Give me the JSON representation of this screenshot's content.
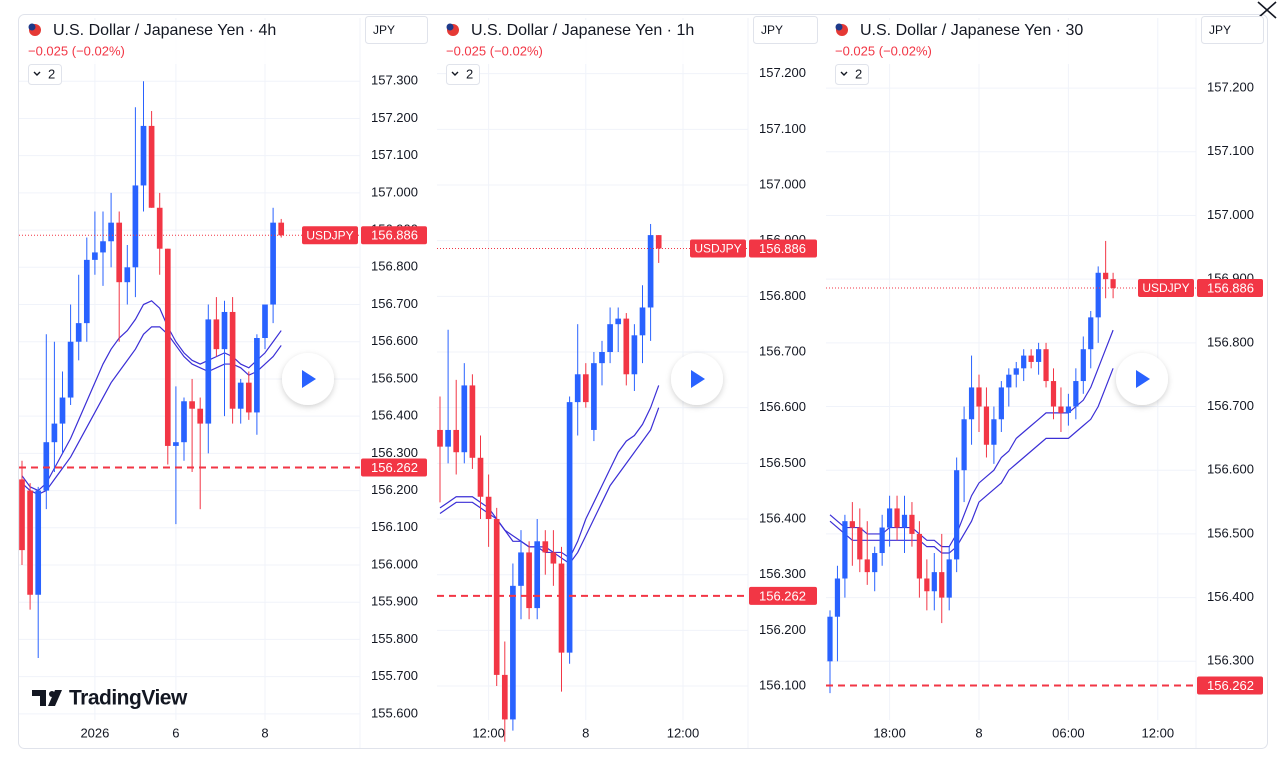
{
  "chart_data": [
    {
      "type": "candlestick",
      "title": "U.S. Dollar / Japanese Yen · 4h",
      "change": "−0.025 (−0.02%)",
      "indicators": "2",
      "currency": "JPY",
      "watermark": "TradingView",
      "categories": [
        null,
        null,
        null,
        null,
        null,
        null,
        null,
        null,
        null,
        "2026",
        null,
        null,
        null,
        null,
        null,
        null,
        null,
        null,
        null,
        "6",
        null,
        null,
        null,
        null,
        null,
        null,
        null,
        null,
        null,
        null,
        "8",
        null,
        null
      ],
      "open": [
        156.23,
        156.2,
        155.92,
        156.2,
        156.33,
        156.38,
        156.45,
        156.6,
        156.65,
        156.82,
        156.84,
        156.87,
        156.92,
        156.76,
        156.8,
        157.02,
        157.18,
        156.96,
        156.85,
        156.32,
        156.33,
        156.44,
        156.42,
        156.38,
        156.66,
        156.58,
        156.68,
        156.42,
        156.49,
        156.41,
        156.61,
        156.7,
        156.92
      ],
      "high": [
        156.28,
        156.22,
        156.21,
        156.62,
        156.6,
        156.52,
        156.7,
        156.78,
        156.88,
        156.95,
        156.95,
        157.0,
        156.95,
        156.86,
        157.23,
        157.3,
        157.22,
        157.0,
        156.85,
        156.48,
        156.45,
        156.5,
        156.45,
        156.7,
        156.72,
        156.71,
        156.72,
        156.5,
        156.52,
        156.62,
        156.7,
        156.96,
        156.93
      ],
      "low": [
        156.0,
        155.88,
        155.75,
        156.15,
        156.25,
        156.3,
        156.43,
        156.55,
        156.6,
        156.78,
        156.75,
        156.8,
        156.6,
        156.7,
        156.72,
        156.95,
        156.96,
        156.78,
        156.27,
        156.11,
        156.28,
        156.25,
        156.15,
        156.3,
        156.56,
        156.4,
        156.38,
        156.38,
        156.39,
        156.35,
        156.58,
        156.65,
        156.88
      ],
      "close": [
        156.04,
        155.92,
        156.2,
        156.33,
        156.38,
        156.45,
        156.6,
        156.65,
        156.82,
        156.84,
        156.87,
        156.92,
        156.76,
        156.8,
        157.02,
        157.18,
        156.96,
        156.85,
        156.32,
        156.33,
        156.44,
        156.42,
        156.38,
        156.66,
        156.58,
        156.68,
        156.42,
        156.49,
        156.41,
        156.61,
        156.7,
        156.92,
        156.886
      ],
      "up_color": "#2962ff",
      "down_color": "#f23645",
      "series": [
        {
          "color": "#3b2fd6",
          "values": [
            156.24,
            156.21,
            156.2,
            156.22,
            156.26,
            156.3,
            156.34,
            156.39,
            156.44,
            156.49,
            156.54,
            156.58,
            156.61,
            156.63,
            156.66,
            156.7,
            156.71,
            156.69,
            156.64,
            156.6,
            156.57,
            156.55,
            156.54,
            156.55,
            156.56,
            156.57,
            156.56,
            156.54,
            156.53,
            156.55,
            156.57,
            156.6,
            156.63
          ]
        },
        {
          "color": "#3b2fd6",
          "values": [
            156.22,
            156.2,
            156.19,
            156.2,
            156.23,
            156.26,
            156.29,
            156.33,
            156.37,
            156.41,
            156.45,
            156.49,
            156.52,
            156.55,
            156.58,
            156.62,
            156.64,
            156.64,
            156.62,
            156.59,
            156.56,
            156.54,
            156.53,
            156.52,
            156.53,
            156.54,
            156.54,
            156.53,
            156.51,
            156.52,
            156.54,
            156.56,
            156.59
          ]
        }
      ],
      "ylim": [
        155.57,
        157.47
      ],
      "yticks": [
        {
          "value": 155.6,
          "label": "155.600"
        },
        {
          "value": 155.7,
          "label": "155.700"
        },
        {
          "value": 155.8,
          "label": "155.800"
        },
        {
          "value": 155.9,
          "label": "155.900"
        },
        {
          "value": 156.0,
          "label": "156.000"
        },
        {
          "value": 156.1,
          "label": "156.100"
        },
        {
          "value": 156.2,
          "label": "156.200"
        },
        {
          "value": 156.3,
          "label": "156.300"
        },
        {
          "value": 156.4,
          "label": "156.400"
        },
        {
          "value": 156.5,
          "label": "156.500"
        },
        {
          "value": 156.6,
          "label": "156.600"
        },
        {
          "value": 156.7,
          "label": "156.700"
        },
        {
          "value": 156.8,
          "label": "156.800"
        },
        {
          "value": 156.9,
          "label": "156.900"
        },
        {
          "value": 157.0,
          "label": "157.000"
        },
        {
          "value": 157.1,
          "label": "157.100"
        },
        {
          "value": 157.2,
          "label": "157.200"
        },
        {
          "value": 157.3,
          "label": "157.300"
        }
      ],
      "grid": true,
      "price_lines": [
        {
          "name": "USDJPY",
          "value": 156.886,
          "style": "dotted",
          "color": "#f23645"
        },
        {
          "value": 156.262,
          "style": "dashed",
          "color": "#f23645"
        }
      ]
    },
    {
      "type": "candlestick",
      "title": "U.S. Dollar / Japanese Yen · 1h",
      "change": "−0.025 (−0.02%)",
      "indicators": "2",
      "currency": "JPY",
      "categories": [
        null,
        null,
        null,
        null,
        null,
        null,
        "12:00",
        null,
        null,
        null,
        null,
        null,
        null,
        null,
        null,
        null,
        null,
        null,
        "8",
        null,
        null,
        null,
        null,
        null,
        null,
        null,
        null,
        null,
        null,
        null,
        "12:00"
      ],
      "open": [
        156.56,
        156.53,
        156.56,
        156.52,
        156.64,
        156.51,
        156.44,
        156.4,
        156.12,
        156.04,
        156.28,
        156.34,
        156.24,
        156.36,
        156.34,
        156.32,
        156.16,
        156.61,
        156.66,
        156.56,
        156.68,
        156.7,
        156.75,
        156.76,
        156.66,
        156.73,
        156.78,
        156.91,
        null,
        null,
        null
      ],
      "high": [
        156.62,
        156.74,
        156.65,
        156.68,
        156.66,
        156.55,
        156.48,
        156.42,
        156.18,
        156.32,
        156.38,
        156.36,
        156.4,
        156.38,
        156.38,
        156.35,
        156.62,
        156.75,
        156.68,
        156.7,
        156.72,
        156.78,
        156.78,
        156.77,
        156.75,
        156.82,
        156.93,
        156.91,
        null,
        null,
        null
      ],
      "low": [
        156.43,
        156.5,
        156.48,
        156.5,
        156.49,
        156.4,
        156.35,
        156.1,
        156.0,
        156.02,
        156.22,
        156.22,
        156.22,
        156.3,
        156.28,
        156.09,
        156.14,
        156.55,
        156.6,
        156.54,
        156.64,
        156.68,
        156.7,
        156.64,
        156.63,
        156.68,
        156.72,
        156.86,
        null,
        null,
        null
      ],
      "close": [
        156.53,
        156.56,
        156.52,
        156.64,
        156.51,
        156.44,
        156.4,
        156.12,
        156.04,
        156.28,
        156.34,
        156.24,
        156.36,
        156.34,
        156.32,
        156.16,
        156.61,
        156.66,
        156.61,
        156.68,
        156.7,
        156.75,
        156.76,
        156.66,
        156.73,
        156.78,
        156.91,
        156.886,
        null,
        null,
        null
      ],
      "up_color": "#2962ff",
      "down_color": "#f23645",
      "series": [
        {
          "color": "#3b2fd6",
          "values": [
            156.42,
            156.43,
            156.44,
            156.44,
            156.44,
            156.43,
            156.42,
            156.4,
            156.38,
            156.36,
            156.36,
            156.35,
            156.35,
            156.35,
            156.34,
            156.34,
            156.33,
            156.36,
            156.4,
            156.43,
            156.46,
            156.49,
            156.52,
            156.54,
            156.55,
            156.57,
            156.6,
            156.64,
            null,
            null,
            null
          ]
        },
        {
          "color": "#3b2fd6",
          "values": [
            156.41,
            156.42,
            156.43,
            156.43,
            156.43,
            156.42,
            156.41,
            156.4,
            156.38,
            156.37,
            156.36,
            156.35,
            156.35,
            156.34,
            156.34,
            156.33,
            156.32,
            156.34,
            156.37,
            156.4,
            156.43,
            156.46,
            156.48,
            156.5,
            156.52,
            156.54,
            156.56,
            156.6,
            null,
            null,
            null
          ]
        }
      ],
      "ylim": [
        156.03,
        157.3
      ],
      "yticks": [
        {
          "value": 156.1,
          "label": "156.100"
        },
        {
          "value": 156.2,
          "label": "156.200"
        },
        {
          "value": 156.3,
          "label": "156.300"
        },
        {
          "value": 156.4,
          "label": "156.400"
        },
        {
          "value": 156.5,
          "label": "156.500"
        },
        {
          "value": 156.6,
          "label": "156.600"
        },
        {
          "value": 156.7,
          "label": "156.700"
        },
        {
          "value": 156.8,
          "label": "156.800"
        },
        {
          "value": 156.9,
          "label": "156.900"
        },
        {
          "value": 157.0,
          "label": "157.000"
        },
        {
          "value": 157.1,
          "label": "157.100"
        },
        {
          "value": 157.2,
          "label": "157.200"
        }
      ],
      "grid": true,
      "price_lines": [
        {
          "name": "USDJPY",
          "value": 156.886,
          "style": "dotted",
          "color": "#f23645"
        },
        {
          "value": 156.262,
          "style": "dashed",
          "color": "#f23645"
        }
      ]
    },
    {
      "type": "candlestick",
      "title": "U.S. Dollar / Japanese Yen · 30",
      "change": "−0.025 (−0.02%)",
      "indicators": "2",
      "currency": "JPY",
      "categories": [
        null,
        null,
        null,
        null,
        null,
        null,
        null,
        null,
        "18:00",
        null,
        null,
        null,
        null,
        null,
        null,
        null,
        null,
        null,
        null,
        null,
        "8",
        null,
        null,
        null,
        null,
        null,
        null,
        null,
        null,
        null,
        null,
        null,
        "06:00",
        null,
        null,
        null,
        null,
        null,
        null,
        null,
        null,
        null,
        null,
        null,
        "12:00"
      ],
      "open": [
        156.3,
        156.37,
        156.43,
        156.52,
        156.51,
        156.46,
        156.44,
        156.47,
        156.51,
        156.54,
        156.51,
        156.53,
        156.5,
        156.43,
        156.41,
        156.44,
        156.4,
        156.46,
        156.6,
        156.68,
        156.73,
        156.7,
        156.64,
        156.68,
        156.73,
        156.75,
        156.76,
        156.78,
        156.77,
        156.79,
        156.74,
        156.7,
        156.69,
        156.7,
        156.74,
        156.79,
        156.84,
        156.91,
        156.9,
        null,
        null,
        null,
        null,
        null,
        null
      ],
      "high": [
        156.38,
        156.45,
        156.53,
        156.55,
        156.54,
        156.52,
        156.48,
        156.53,
        156.56,
        156.56,
        156.56,
        156.55,
        156.52,
        156.46,
        156.47,
        156.5,
        156.48,
        156.62,
        156.7,
        156.78,
        156.75,
        156.73,
        156.7,
        156.74,
        156.76,
        156.77,
        156.79,
        156.79,
        156.8,
        156.8,
        156.76,
        156.73,
        156.72,
        156.76,
        156.81,
        156.85,
        156.92,
        156.96,
        156.91,
        null,
        null,
        null,
        null,
        null,
        null
      ],
      "low": [
        156.25,
        156.3,
        156.4,
        156.45,
        156.44,
        156.42,
        156.41,
        156.45,
        156.48,
        156.49,
        156.47,
        156.48,
        156.4,
        156.38,
        156.38,
        156.36,
        156.38,
        156.44,
        156.55,
        156.64,
        156.66,
        156.62,
        156.61,
        156.66,
        156.7,
        156.73,
        156.74,
        156.76,
        156.75,
        156.73,
        156.68,
        156.66,
        156.67,
        156.68,
        156.72,
        156.76,
        156.8,
        156.87,
        156.87,
        null,
        null,
        null,
        null,
        null,
        null
      ],
      "close": [
        156.37,
        156.43,
        156.52,
        156.51,
        156.46,
        156.44,
        156.47,
        156.51,
        156.54,
        156.51,
        156.53,
        156.5,
        156.43,
        156.41,
        156.44,
        156.4,
        156.46,
        156.6,
        156.68,
        156.73,
        156.7,
        156.64,
        156.68,
        156.73,
        156.75,
        156.76,
        156.78,
        156.77,
        156.79,
        156.74,
        156.7,
        156.69,
        156.7,
        156.74,
        156.79,
        156.84,
        156.91,
        156.9,
        156.886,
        null,
        null,
        null,
        null,
        null,
        null
      ],
      "up_color": "#2962ff",
      "down_color": "#f23645",
      "series": [
        {
          "color": "#3b2fd6",
          "values": [
            156.53,
            156.52,
            156.51,
            156.51,
            156.51,
            156.5,
            156.5,
            156.5,
            156.51,
            156.51,
            156.51,
            156.51,
            156.5,
            156.49,
            156.49,
            156.48,
            156.48,
            156.5,
            156.53,
            156.56,
            156.58,
            156.59,
            156.6,
            156.62,
            156.63,
            156.65,
            156.66,
            156.67,
            156.68,
            156.69,
            156.69,
            156.69,
            156.69,
            156.7,
            156.71,
            156.73,
            156.76,
            156.79,
            156.82,
            null,
            null,
            null,
            null,
            null,
            null
          ]
        },
        {
          "color": "#3b2fd6",
          "values": [
            156.52,
            156.51,
            156.5,
            156.49,
            156.49,
            156.49,
            156.49,
            156.49,
            156.49,
            156.49,
            156.49,
            156.49,
            156.49,
            156.48,
            156.48,
            156.47,
            156.47,
            156.48,
            156.5,
            156.52,
            156.55,
            156.56,
            156.57,
            156.58,
            156.6,
            156.61,
            156.62,
            156.63,
            156.64,
            156.65,
            156.65,
            156.65,
            156.65,
            156.66,
            156.67,
            156.68,
            156.7,
            156.73,
            156.76,
            null,
            null,
            null,
            null,
            null,
            null
          ]
        }
      ],
      "ylim": [
        156.2,
        157.31
      ],
      "yticks": [
        {
          "value": 156.3,
          "label": "156.300"
        },
        {
          "value": 156.4,
          "label": "156.400"
        },
        {
          "value": 156.5,
          "label": "156.500"
        },
        {
          "value": 156.6,
          "label": "156.600"
        },
        {
          "value": 156.7,
          "label": "156.700"
        },
        {
          "value": 156.8,
          "label": "156.800"
        },
        {
          "value": 156.9,
          "label": "156.900"
        },
        {
          "value": 157.0,
          "label": "157.000"
        },
        {
          "value": 157.1,
          "label": "157.100"
        },
        {
          "value": 157.2,
          "label": "157.200"
        }
      ],
      "grid": true,
      "price_lines": [
        {
          "name": "USDJPY",
          "value": 156.886,
          "style": "dotted",
          "color": "#f23645"
        },
        {
          "value": 156.262,
          "style": "dashed",
          "color": "#f23645"
        }
      ]
    }
  ]
}
